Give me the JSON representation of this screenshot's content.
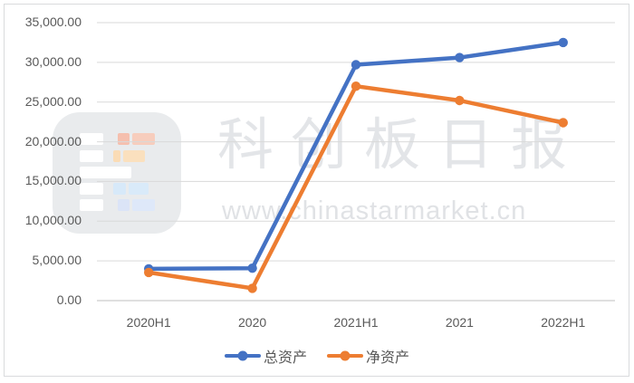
{
  "watermark": {
    "title": "科创板日报",
    "url": "www.chinastarmarket.cn"
  },
  "chart_data": {
    "type": "line",
    "title": "",
    "xlabel": "",
    "ylabel": "",
    "categories": [
      "2020H1",
      "2020",
      "2021H1",
      "2021",
      "2022H1"
    ],
    "series": [
      {
        "name": "总资产",
        "color": "#4472C4",
        "values": [
          4000,
          4080,
          29700,
          30600,
          32500
        ]
      },
      {
        "name": "净资产",
        "color": "#ED7D31",
        "values": [
          3550,
          1550,
          27000,
          25200,
          22400
        ]
      }
    ],
    "ylim": [
      0,
      35000
    ],
    "ytick_step": 5000,
    "ytick_labels": [
      "35,000.00",
      "30,000.00",
      "25,000.00",
      "20,000.00",
      "15,000.00",
      "10,000.00",
      "5,000.00",
      "0.00"
    ],
    "grid": true,
    "legend_position": "bottom"
  },
  "colors": {
    "gridline": "#d9d9d9",
    "axis_line": "#bfbfbf",
    "tick_label": "#595959",
    "watermark_gray": "#e3e5e8"
  }
}
